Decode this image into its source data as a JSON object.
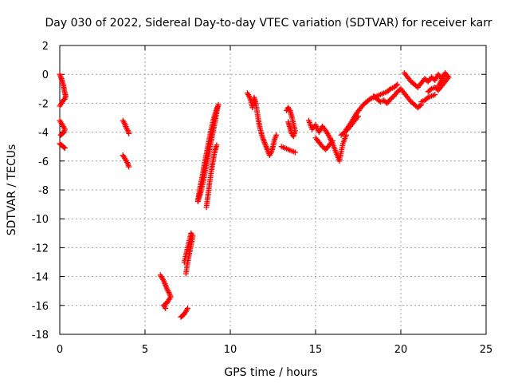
{
  "chart_data": {
    "type": "scatter",
    "title": "Day 030 of 2022, Sidereal Day-to-day VTEC variation (SDTVAR) for receiver karr",
    "xlabel": "GPS time / hours",
    "ylabel": "SDTVAR / TECUs",
    "xlim": [
      0,
      25
    ],
    "ylim": [
      -18,
      2
    ],
    "xticks": [
      0,
      5,
      10,
      15,
      20,
      25
    ],
    "yticks": [
      -18,
      -16,
      -14,
      -12,
      -10,
      -8,
      -6,
      -4,
      -2,
      0,
      2
    ],
    "grid": true,
    "marker": "plus",
    "color": "#ff0000",
    "segments": [
      {
        "x": [
          0.0,
          0.1,
          0.2,
          0.25,
          0.3,
          0.35,
          0.3,
          0.2,
          0.15,
          0.1,
          0.05,
          0.0
        ],
        "y": [
          0.0,
          -0.3,
          -0.7,
          -1.0,
          -1.3,
          -1.5,
          -1.7,
          -1.8,
          -1.9,
          -2.0,
          -2.1,
          -2.2
        ]
      },
      {
        "x": [
          0.0,
          0.1,
          0.2,
          0.3,
          0.25,
          0.15,
          0.05
        ],
        "y": [
          -3.2,
          -3.4,
          -3.6,
          -3.8,
          -4.0,
          -4.1,
          -4.2
        ]
      },
      {
        "x": [
          0.0,
          0.1,
          0.2,
          0.3
        ],
        "y": [
          -4.8,
          -4.9,
          -5.0,
          -5.1
        ]
      },
      {
        "x": [
          3.7,
          3.8,
          3.9,
          4.0,
          4.05
        ],
        "y": [
          -3.2,
          -3.4,
          -3.7,
          -3.9,
          -4.1
        ]
      },
      {
        "x": [
          3.7,
          3.8,
          3.9,
          4.0,
          4.05
        ],
        "y": [
          -5.6,
          -5.8,
          -6.0,
          -6.2,
          -6.4
        ]
      },
      {
        "x": [
          5.9,
          6.0,
          6.1,
          6.2,
          6.3,
          6.4,
          6.5,
          6.4,
          6.3,
          6.2,
          6.1,
          6.2
        ],
        "y": [
          -13.9,
          -14.1,
          -14.3,
          -14.6,
          -14.9,
          -15.1,
          -15.4,
          -15.6,
          -15.8,
          -15.9,
          -16.0,
          -16.2
        ]
      },
      {
        "x": [
          7.1,
          7.2,
          7.3,
          7.4,
          7.5
        ],
        "y": [
          -16.8,
          -16.7,
          -16.6,
          -16.4,
          -16.2
        ]
      },
      {
        "x": [
          7.3,
          7.4,
          7.5,
          7.6,
          7.7,
          7.8,
          7.7,
          7.6,
          7.5,
          7.4
        ],
        "y": [
          -13.0,
          -12.5,
          -12.0,
          -11.5,
          -11.0,
          -11.2,
          -11.8,
          -12.4,
          -13.0,
          -13.8
        ]
      },
      {
        "x": [
          8.1,
          8.2,
          8.3,
          8.4,
          8.5,
          8.6,
          8.7,
          8.8,
          8.9,
          9.0,
          9.1,
          9.2,
          9.3,
          9.2,
          9.1,
          9.0,
          8.9,
          8.8,
          8.7,
          8.6,
          8.5,
          8.4,
          8.3,
          8.2,
          8.1
        ],
        "y": [
          -8.7,
          -8.0,
          -7.4,
          -6.8,
          -6.1,
          -5.5,
          -4.9,
          -4.3,
          -3.7,
          -3.2,
          -2.8,
          -2.4,
          -2.1,
          -2.6,
          -3.3,
          -3.9,
          -4.5,
          -5.1,
          -5.7,
          -6.3,
          -6.9,
          -7.5,
          -8.0,
          -8.4,
          -8.8
        ]
      },
      {
        "x": [
          8.6,
          8.7,
          8.8,
          8.9,
          9.0,
          9.1,
          9.2
        ],
        "y": [
          -9.2,
          -8.3,
          -7.4,
          -6.6,
          -5.9,
          -5.3,
          -4.9
        ]
      },
      {
        "x": [
          11.0,
          11.1,
          11.2,
          11.3,
          11.4,
          11.5,
          11.6,
          11.7,
          11.8,
          11.9,
          12.0,
          12.1,
          12.2,
          12.3,
          12.4,
          12.5,
          12.6,
          12.7
        ],
        "y": [
          -1.3,
          -1.5,
          -1.8,
          -2.3,
          -1.6,
          -2.0,
          -2.8,
          -3.5,
          -4.0,
          -4.4,
          -4.7,
          -5.0,
          -5.3,
          -5.6,
          -5.4,
          -5.0,
          -4.5,
          -4.2
        ]
      },
      {
        "x": [
          13.3,
          13.4,
          13.5,
          13.6,
          13.7,
          13.8,
          13.7,
          13.6,
          13.5,
          13.4
        ],
        "y": [
          -2.5,
          -2.3,
          -2.5,
          -2.9,
          -3.4,
          -3.9,
          -4.3,
          -4.1,
          -3.7,
          -3.3
        ]
      },
      {
        "x": [
          13.0,
          13.2,
          13.4,
          13.6,
          13.8
        ],
        "y": [
          -5.0,
          -5.1,
          -5.2,
          -5.3,
          -5.4
        ]
      },
      {
        "x": [
          14.6,
          14.8,
          15.0,
          15.2,
          15.4,
          15.6,
          15.8,
          16.0,
          16.2,
          16.4,
          16.6,
          16.8
        ],
        "y": [
          -3.2,
          -3.8,
          -3.5,
          -4.0,
          -3.6,
          -3.9,
          -4.3,
          -4.8,
          -5.4,
          -6.0,
          -4.8,
          -4.2
        ]
      },
      {
        "x": [
          15.0,
          15.2,
          15.4,
          15.6,
          15.8,
          16.0
        ],
        "y": [
          -4.4,
          -4.7,
          -5.0,
          -5.2,
          -4.9,
          -4.6
        ]
      },
      {
        "x": [
          16.8,
          17.0,
          17.2,
          17.4,
          17.6,
          17.8,
          18.0,
          18.2,
          18.4,
          18.6,
          18.8,
          19.0,
          19.2,
          19.4,
          19.6,
          19.8
        ],
        "y": [
          -3.8,
          -3.5,
          -3.1,
          -2.7,
          -2.4,
          -2.1,
          -1.9,
          -1.7,
          -1.6,
          -1.5,
          -1.4,
          -1.3,
          -1.2,
          -1.0,
          -0.9,
          -0.7
        ]
      },
      {
        "x": [
          16.5,
          16.7,
          16.9,
          17.1,
          17.3,
          17.5
        ],
        "y": [
          -4.2,
          -4.0,
          -3.8,
          -3.5,
          -3.2,
          -2.9
        ]
      },
      {
        "x": [
          18.4,
          18.6,
          18.8,
          19.0,
          19.2,
          19.4,
          19.6,
          19.8,
          20.0,
          20.2,
          20.4,
          20.6,
          20.8,
          21.0,
          21.2
        ],
        "y": [
          -1.5,
          -1.7,
          -1.9,
          -1.8,
          -2.0,
          -1.7,
          -1.5,
          -1.2,
          -1.0,
          -1.3,
          -1.6,
          -1.9,
          -2.1,
          -2.3,
          -2.1
        ]
      },
      {
        "x": [
          20.2,
          20.4,
          20.6,
          20.8,
          21.0,
          21.2,
          21.4,
          21.6,
          21.8,
          22.0,
          22.2,
          22.4,
          22.6,
          22.8
        ],
        "y": [
          0.1,
          -0.2,
          -0.5,
          -0.7,
          -0.9,
          -0.6,
          -0.3,
          -0.5,
          -0.2,
          -0.4,
          0.0,
          -0.3,
          0.1,
          -0.2
        ]
      },
      {
        "x": [
          21.6,
          21.8,
          22.0,
          22.2,
          22.4,
          22.6,
          22.8,
          22.6,
          22.4,
          22.2
        ],
        "y": [
          -1.2,
          -1.0,
          -0.9,
          -1.1,
          -0.8,
          -0.5,
          -0.2,
          0.0,
          -0.4,
          -0.8
        ]
      },
      {
        "x": [
          21.2,
          21.4,
          21.6,
          21.8,
          22.0
        ],
        "y": [
          -1.9,
          -1.8,
          -1.6,
          -1.5,
          -1.4
        ]
      }
    ]
  }
}
